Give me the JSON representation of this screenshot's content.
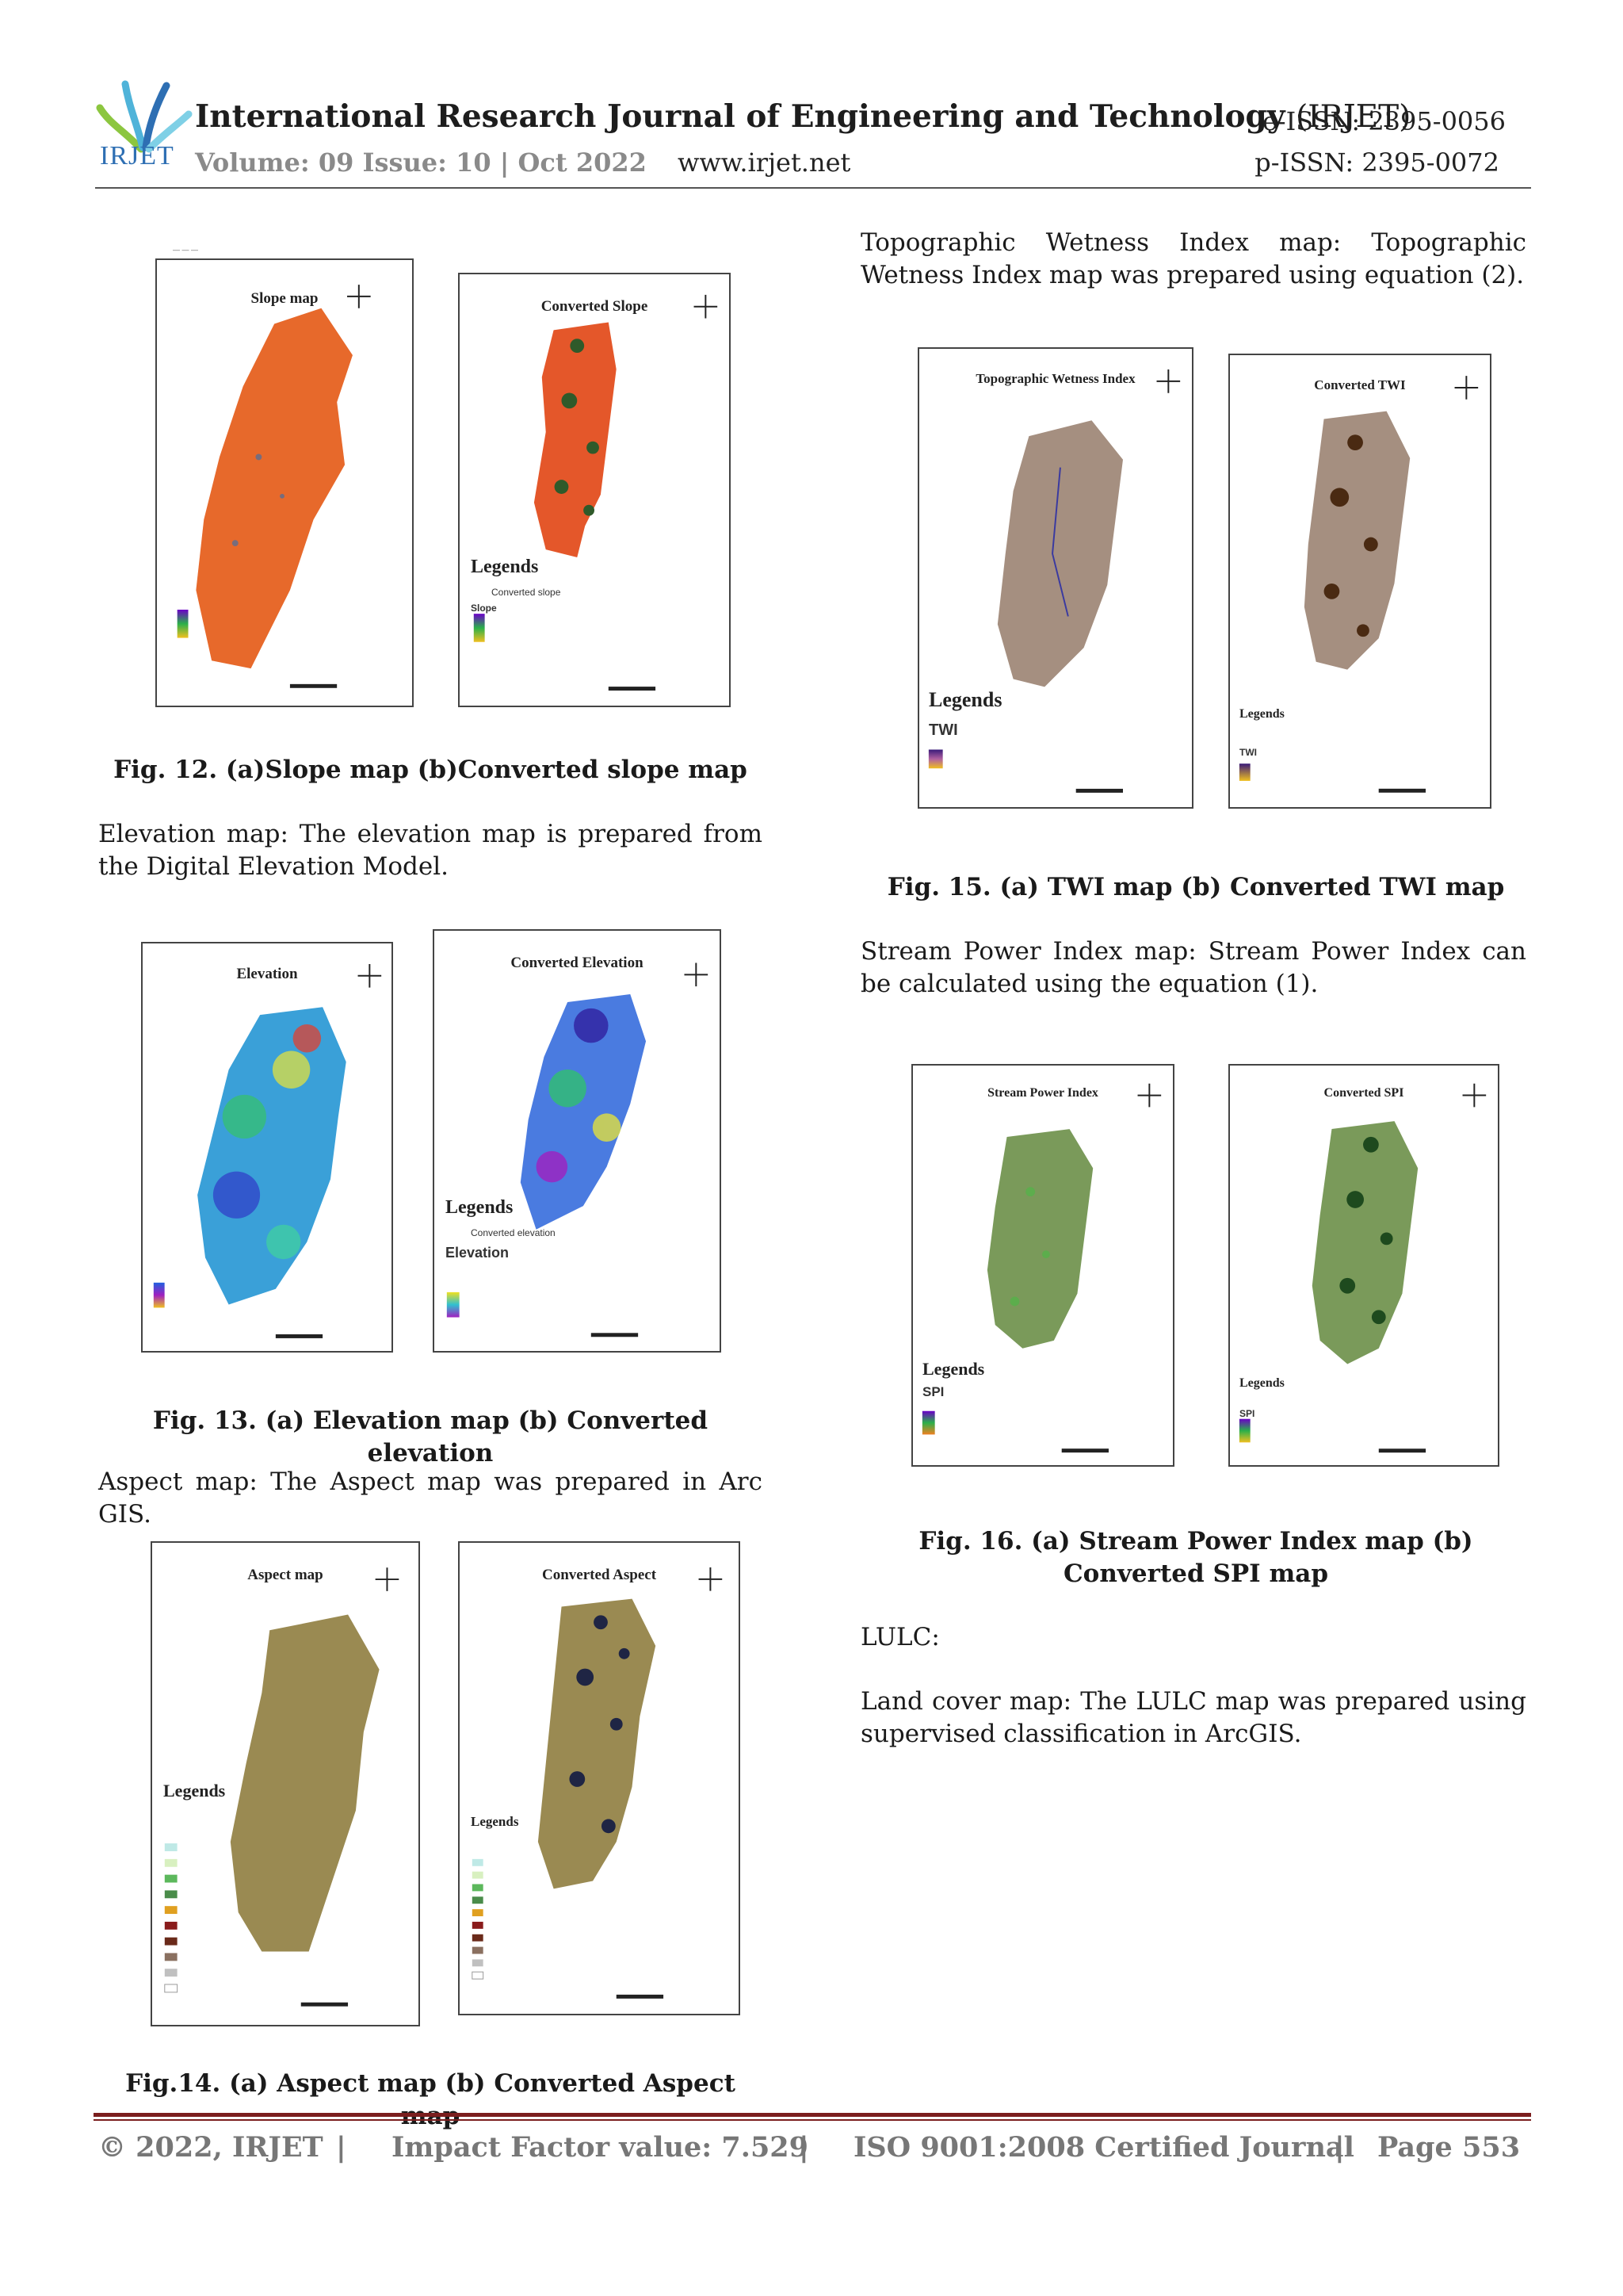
{
  "header": {
    "logo_text": "IRJET",
    "journal_title": "International Research Journal of Engineering and Technology",
    "journal_abbr": "(IRJET)",
    "volume": "Volume: 09 Issue: 10 | Oct 2022",
    "website": "www.irjet.net",
    "eissn": "e-ISSN: 2395-0056",
    "pissn": "p-ISSN: 2395-0072"
  },
  "left_column": {
    "fig12": {
      "a_title": "Slope map",
      "b_title": "Converted Slope",
      "b_legend_head": "Legends",
      "b_legend_item": "Converted slope",
      "b_legend_layer": "Slope",
      "caption": "Fig. 12. (a)Slope map (b)Converted slope map"
    },
    "para_elevation": "Elevation map: The elevation map is prepared from the Digital Elevation Model.",
    "fig13": {
      "a_title": "Elevation",
      "b_title": "Converted Elevation",
      "b_legend_head": "Legends",
      "b_legend_item": "Converted elevation",
      "b_legend_layer": "Elevation",
      "caption": "Fig. 13. (a) Elevation map (b) Converted elevation"
    },
    "para_aspect": "Aspect map: The Aspect map was prepared in Arc GIS.",
    "fig14": {
      "a_title": "Aspect map",
      "b_title": "Converted Aspect",
      "a_legend_head": "Legends",
      "b_legend_head": "Legends",
      "caption": "Fig.14. (a) Aspect map (b) Converted Aspect map"
    }
  },
  "right_column": {
    "para_twi": "Topographic Wetness Index map: Topographic Wetness Index map was prepared using equation (2).",
    "fig15": {
      "a_title": "Topographic Wetness Index",
      "b_title": "Converted TWI",
      "a_legend_head": "Legends",
      "a_legend_layer": "TWI",
      "b_legend_head": "Legends",
      "b_legend_layer": "TWI",
      "caption": "Fig. 15. (a) TWI map (b) Converted TWI map"
    },
    "para_spi": "Stream Power Index map: Stream Power Index can be calculated using the equation (1).",
    "fig16": {
      "a_title": "Stream Power Index",
      "b_title": "Converted SPI",
      "a_legend_head": "Legends",
      "a_legend_layer": "SPI",
      "b_legend_head": "Legends",
      "b_legend_layer": "SPI",
      "caption": "Fig. 16. (a) Stream Power Index map (b) Converted SPI map"
    },
    "lulc_heading": "LULC:",
    "para_landcover": "Land cover map: The LULC map was prepared using supervised classification in ArcGIS."
  },
  "footer": {
    "copyright": "© 2022, IRJET",
    "impact": "Impact Factor value: 7.529",
    "iso": "ISO 9001:2008 Certified Journal",
    "page": "Page 553",
    "separator": "|"
  },
  "colors": {
    "slope": "#e4572a",
    "slope_dark": "#2f5a2a",
    "elevation_a": "#3aa0d8",
    "elevation_b": "#4a7be0",
    "aspect": "#9a8a52",
    "aspect_dark": "#1f2544",
    "twi": "#a58f80",
    "twi_dark": "#4a2a12",
    "spi": "#7a9a5a",
    "spi_dark": "#1e4a1e",
    "footer_rule": "#7b1e1e",
    "logo_blue": "#2e6fb3"
  }
}
